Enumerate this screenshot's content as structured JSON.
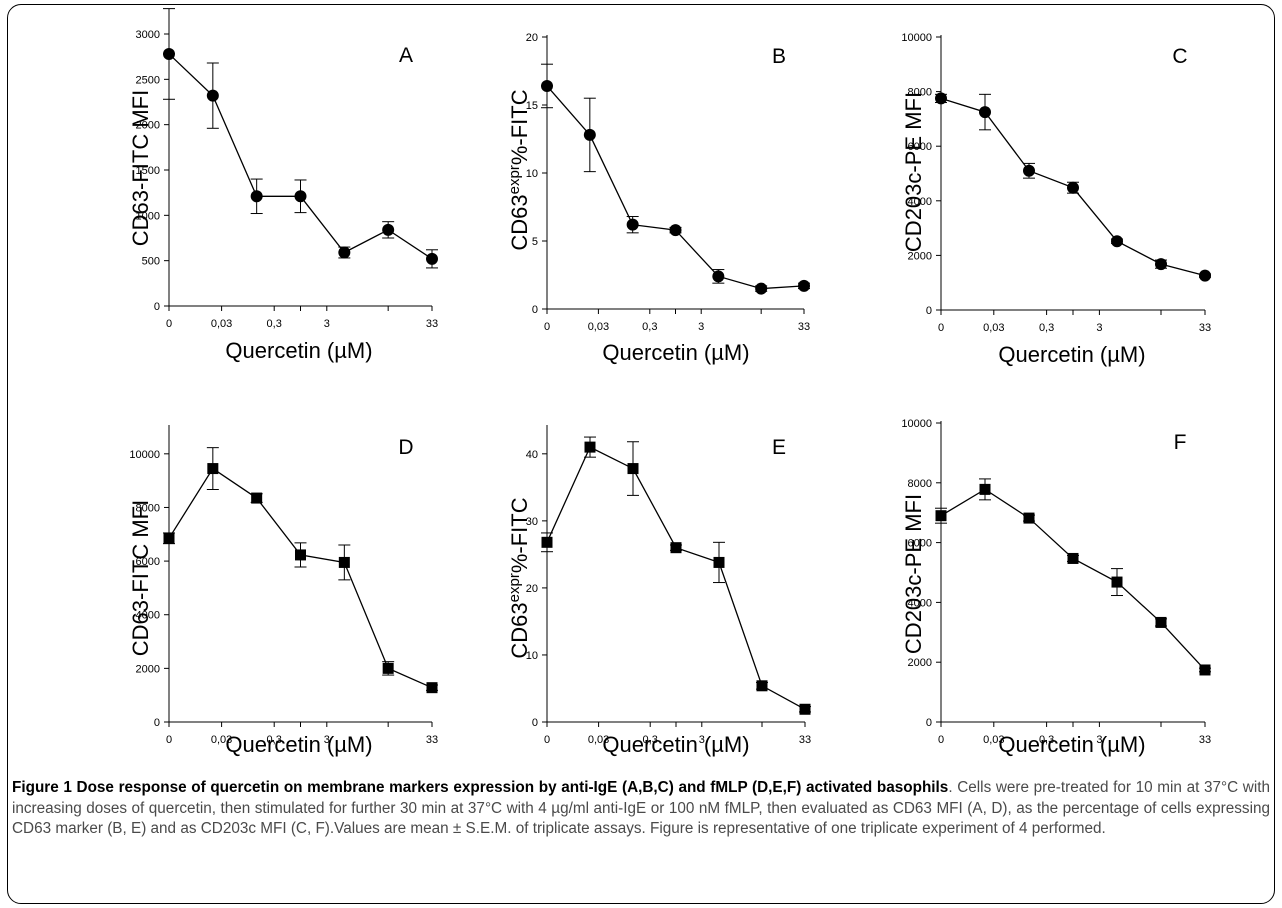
{
  "caption": {
    "title": "Figure 1 Dose response of quercetin on membrane markers expression by anti-IgE (A,B,C) and fMLP (D,E,F) activated basophils",
    "body": ". Cells were pre-treated for 10 min at 37°C with increasing doses of quercetin, then stimulated for further 30 min at 37°C with 4 µg/ml anti-IgE or 100 nM fMLP, then evaluated as CD63 MFI (A, D), as the percentage of cells expressing CD63 marker (B, E) and as CD203c MFI (C, F).Values are mean ± S.E.M. of triplicate assays. Figure is representative of one triplicate experiment of 4 performed."
  },
  "colors": {
    "line": "#000000",
    "marker": "#000000",
    "caption_text": "#4a4a4a"
  },
  "chart_data": [
    {
      "panel": "A",
      "type": "line",
      "marker": "circle",
      "xlabel": "Quercetin (µM)",
      "ylabel": "CD63-FITC MFI",
      "ylim": [
        0,
        3000
      ],
      "yticks": [
        0,
        500,
        1000,
        1500,
        2000,
        2500,
        3000
      ],
      "x_tick_labels": [
        "0",
        "0,03",
        "0,3",
        "3",
        "33"
      ],
      "x": [
        "0",
        "0,03",
        "0,3",
        "1",
        "3",
        "10",
        "33"
      ],
      "values": [
        2780,
        2320,
        1210,
        1210,
        590,
        840,
        520
      ],
      "errors": [
        500,
        360,
        190,
        180,
        60,
        90,
        100
      ]
    },
    {
      "panel": "B",
      "type": "line",
      "marker": "circle",
      "xlabel": "Quercetin (µM)",
      "ylabel": "CD63expr%-FITC",
      "ylim": [
        0,
        20
      ],
      "yticks": [
        0,
        5,
        10,
        15,
        20
      ],
      "x_tick_labels": [
        "0",
        "0,03",
        "0,3",
        "3",
        "33"
      ],
      "x": [
        "0",
        "0,03",
        "0,3",
        "1",
        "3",
        "10",
        "33"
      ],
      "values": [
        16.4,
        12.8,
        6.2,
        5.8,
        2.4,
        1.5,
        1.7
      ],
      "errors": [
        1.6,
        2.7,
        0.6,
        0.2,
        0.5,
        0.2,
        0.2
      ]
    },
    {
      "panel": "C",
      "type": "line",
      "marker": "circle",
      "xlabel": "Quercetin (µM)",
      "ylabel": "CD203c-PE MFI",
      "ylim": [
        0,
        10000
      ],
      "yticks": [
        0,
        2000,
        4000,
        6000,
        8000,
        10000
      ],
      "x_tick_labels": [
        "0",
        "0,03",
        "0,3",
        "3",
        "33"
      ],
      "x": [
        "0",
        "0,03",
        "0,3",
        "1",
        "3",
        "10",
        "33"
      ],
      "values": [
        7750,
        7250,
        5100,
        4480,
        2520,
        1680,
        1260
      ],
      "errors": [
        150,
        650,
        270,
        200,
        80,
        150,
        60
      ]
    },
    {
      "panel": "D",
      "type": "line",
      "marker": "square",
      "xlabel": "Quercetin (µM)",
      "ylabel": "CD63-FITC MFI",
      "ylim": [
        0,
        11000
      ],
      "yticks": [
        0,
        2000,
        4000,
        6000,
        8000,
        10000
      ],
      "x_tick_labels": [
        "0",
        "0,03",
        "0,3",
        "3",
        "33"
      ],
      "x": [
        "0",
        "0,03",
        "0,3",
        "1",
        "3",
        "10",
        "33"
      ],
      "values": [
        6850,
        9450,
        8350,
        6230,
        5950,
        2000,
        1280
      ],
      "errors": [
        200,
        780,
        160,
        450,
        650,
        250,
        100
      ]
    },
    {
      "panel": "E",
      "type": "line",
      "marker": "square",
      "xlabel": "Quercetin (µM)",
      "ylabel": "CD63expr%-FITC",
      "ylim": [
        0,
        44
      ],
      "yticks": [
        0,
        10,
        20,
        30,
        40
      ],
      "x_tick_labels": [
        "0",
        "0,03",
        "0,3",
        "3",
        "33"
      ],
      "x": [
        "0",
        "0,03",
        "0,3",
        "1",
        "3",
        "10",
        "33"
      ],
      "values": [
        26.8,
        41.0,
        37.8,
        26.0,
        23.8,
        5.4,
        1.9
      ],
      "errors": [
        1.4,
        1.5,
        4.0,
        0.4,
        3.0,
        0.5,
        0.4
      ]
    },
    {
      "panel": "F",
      "type": "line",
      "marker": "square",
      "xlabel": "Quercetin (µM)",
      "ylabel": "CD203c-PE MFI",
      "ylim": [
        0,
        10000
      ],
      "yticks": [
        0,
        2000,
        4000,
        6000,
        8000,
        10000
      ],
      "x_tick_labels": [
        "0",
        "0,03",
        "0,3",
        "3",
        "33"
      ],
      "x": [
        "0",
        "0,03",
        "0,3",
        "1",
        "3",
        "10",
        "33"
      ],
      "values": [
        6900,
        7780,
        6820,
        5470,
        4680,
        3330,
        1740
      ],
      "errors": [
        250,
        350,
        100,
        100,
        450,
        120,
        60
      ]
    }
  ]
}
